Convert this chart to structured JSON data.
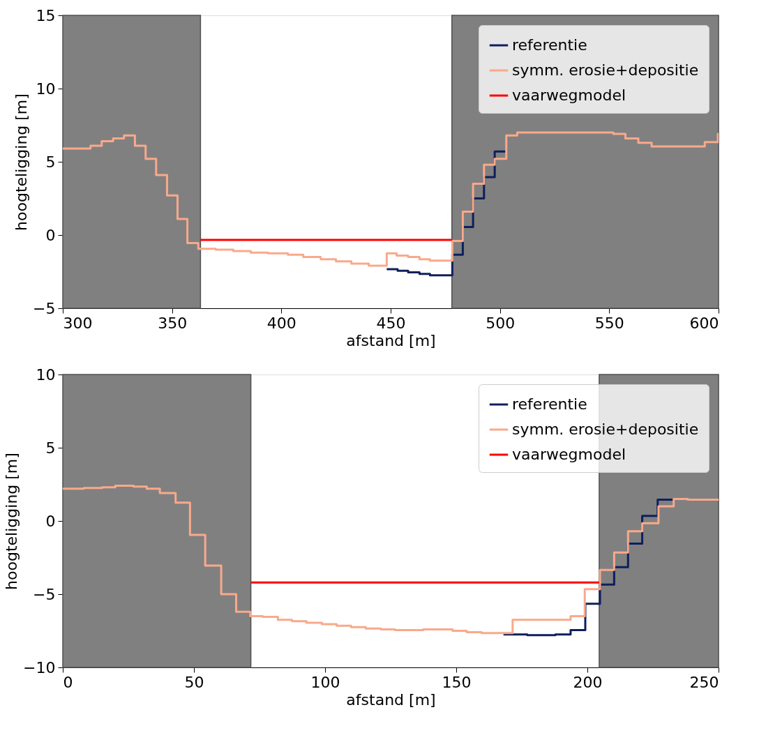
{
  "chart_data": [
    {
      "type": "step",
      "xlabel": "afstand [m]",
      "ylabel": "hoogteligging [m]",
      "xlim": [
        300,
        600
      ],
      "xticks": [
        300,
        350,
        400,
        450,
        500,
        550,
        600
      ],
      "ylim": [
        -5,
        15
      ],
      "yticks": [
        -5,
        0,
        5,
        10,
        15
      ],
      "grid": false,
      "legend": "top right",
      "line_style": "solid",
      "bands": [
        {
          "axis": "x",
          "from": 300,
          "to": 363,
          "color": "#808080"
        },
        {
          "axis": "x",
          "from": 478,
          "to": 600,
          "color": "#808080"
        }
      ],
      "series": [
        {
          "name": "referentie",
          "color": "#0f1f5c",
          "x": [
            448.2,
            453.2,
            458,
            463.2,
            468,
            478.2,
            483,
            487.7,
            492.7,
            497.6,
            502.9
          ],
          "values": [
            -2.33,
            -2.44,
            -2.55,
            -2.65,
            -2.75,
            -1.35,
            0.55,
            2.5,
            3.95,
            5.7,
            5.7
          ]
        },
        {
          "name": "symm. erosie+depositie",
          "color": "#f9a98b",
          "x": [
            300,
            312.7,
            317.8,
            323,
            328,
            333,
            337.9,
            342.7,
            347.7,
            352.5,
            357,
            362,
            370,
            378,
            386,
            394,
            403,
            410,
            418,
            425,
            432,
            440,
            448.2,
            452.7,
            458,
            463.2,
            468,
            478.2,
            483,
            487.7,
            492.7,
            497.6,
            502.9,
            507.9,
            551.9,
            557.4,
            563.3,
            569.4,
            593.7,
            599.7,
            600
          ],
          "values": [
            5.9,
            6.1,
            6.4,
            6.6,
            6.8,
            6.1,
            5.2,
            4.1,
            2.7,
            1.1,
            -0.55,
            -0.94,
            -1.0,
            -1.1,
            -1.2,
            -1.25,
            -1.35,
            -1.5,
            -1.65,
            -1.8,
            -1.95,
            -2.1,
            -1.25,
            -1.4,
            -1.5,
            -1.65,
            -1.75,
            -0.4,
            1.6,
            3.5,
            4.8,
            5.2,
            6.8,
            7.0,
            6.9,
            6.6,
            6.3,
            6.05,
            6.35,
            6.9,
            6.9
          ]
        },
        {
          "name": "vaarwegmodel",
          "type": "line",
          "color": "#ff0000",
          "x": [
            363,
            478
          ],
          "values": [
            -0.33,
            -0.33
          ]
        }
      ]
    },
    {
      "type": "step",
      "xlabel": "afstand [m]",
      "ylabel": "hoogteligging [m]",
      "xlim": [
        0,
        250
      ],
      "xticks": [
        0,
        50,
        100,
        150,
        200,
        250
      ],
      "ylim": [
        -10,
        10
      ],
      "yticks": [
        -10,
        -5,
        0,
        5,
        10
      ],
      "grid": false,
      "legend": "top right",
      "line_style": "solid",
      "bands": [
        {
          "axis": "x",
          "from": 0,
          "to": 71.7,
          "color": "#808080"
        },
        {
          "axis": "x",
          "from": 204.5,
          "to": 250,
          "color": "#808080"
        }
      ],
      "series": [
        {
          "name": "referentie",
          "color": "#0f1f5c",
          "x": [
            168,
            177.1,
            187.8,
            193.6,
            199.2,
            204.8,
            210.2,
            215.5,
            220.9,
            226.8,
            232.9
          ],
          "values": [
            -7.75,
            -7.8,
            -7.75,
            -7.45,
            -5.65,
            -4.35,
            -3.15,
            -1.55,
            0.35,
            1.45,
            1.45
          ]
        },
        {
          "name": "symm. erosie+depositie",
          "color": "#f9a98b",
          "x": [
            0,
            8,
            15,
            20,
            27,
            32,
            37,
            43,
            48.5,
            54.3,
            60.4,
            66.1,
            71.5,
            76.2,
            82,
            87.4,
            92.9,
            98.8,
            104.4,
            109.9,
            115.5,
            121.3,
            126.7,
            137.4,
            143.7,
            148.6,
            154,
            159.7,
            171.5,
            193.6,
            199,
            204.8,
            210.2,
            215.5,
            220.9,
            227.1,
            232.9,
            238.3,
            250
          ],
          "values": [
            2.2,
            2.25,
            2.3,
            2.4,
            2.35,
            2.2,
            1.9,
            1.25,
            -0.95,
            -3.05,
            -5.0,
            -6.2,
            -6.5,
            -6.55,
            -6.75,
            -6.85,
            -6.95,
            -7.05,
            -7.15,
            -7.25,
            -7.35,
            -7.4,
            -7.45,
            -7.4,
            -7.4,
            -7.5,
            -7.6,
            -7.65,
            -6.75,
            -6.5,
            -4.65,
            -3.35,
            -2.15,
            -0.7,
            -0.15,
            1.0,
            1.5,
            1.45,
            1.4
          ]
        },
        {
          "name": "vaarwegmodel",
          "type": "line",
          "color": "#ff0000",
          "x": [
            71.7,
            204.5
          ],
          "values": [
            -4.2,
            -4.2
          ]
        }
      ]
    }
  ]
}
